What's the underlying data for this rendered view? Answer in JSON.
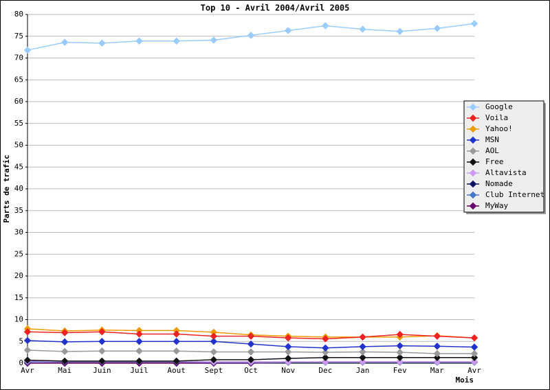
{
  "chart_data": {
    "type": "line",
    "title": "Top 10 - Avril 2004/Avril 2005",
    "x_label": "Mois",
    "y_label": "Parts de trafic",
    "categories": [
      "Avr",
      "Mai",
      "Juin",
      "Juil",
      "Aout",
      "Sept",
      "Oct",
      "Nov",
      "Dec",
      "Jan",
      "Fev",
      "Mar",
      "Avr"
    ],
    "series": [
      {
        "name": "Google",
        "color": "#99ccff",
        "values": [
          71.8,
          73.6,
          73.4,
          73.9,
          73.9,
          74.1,
          75.2,
          76.3,
          77.4,
          76.6,
          76.1,
          76.8,
          77.9
        ]
      },
      {
        "name": "Voila",
        "color": "#ee2222",
        "values": [
          7.2,
          7.0,
          7.2,
          6.7,
          6.7,
          6.2,
          6.2,
          5.8,
          5.6,
          6.0,
          6.6,
          6.2,
          5.8
        ]
      },
      {
        "name": "Yahoo!",
        "color": "#ee9900",
        "values": [
          7.9,
          7.4,
          7.6,
          7.5,
          7.5,
          7.1,
          6.5,
          6.2,
          6.0,
          6.0,
          6.0,
          6.3,
          5.8
        ]
      },
      {
        "name": "MSN",
        "color": "#2233cc",
        "values": [
          5.2,
          4.9,
          5.0,
          5.0,
          5.0,
          5.0,
          4.4,
          3.8,
          3.5,
          3.8,
          4.0,
          3.9,
          3.7
        ]
      },
      {
        "name": "AOL",
        "color": "#999999",
        "values": [
          3.0,
          2.7,
          2.8,
          2.8,
          2.8,
          2.6,
          2.6,
          2.6,
          2.5,
          2.6,
          2.5,
          2.2,
          2.2
        ]
      },
      {
        "name": "Free",
        "color": "#111111",
        "values": [
          0.7,
          0.5,
          0.5,
          0.5,
          0.5,
          0.8,
          0.8,
          1.1,
          1.3,
          1.3,
          1.3,
          1.3,
          1.3
        ]
      },
      {
        "name": "Altavista",
        "color": "#cc99ee",
        "values": [
          0.5,
          0.4,
          0.4,
          0.4,
          0.4,
          0.3,
          0.3,
          0.3,
          0.3,
          0.3,
          0.3,
          0.3,
          0.3
        ]
      },
      {
        "name": "Nomade",
        "color": "#111166",
        "values": [
          0.5,
          0.3,
          0.3,
          0.3,
          0.3,
          0.3,
          0.3,
          0.3,
          0.3,
          0.3,
          0.3,
          0.3,
          0.3
        ]
      },
      {
        "name": "Club Internet",
        "color": "#4477cc",
        "values": [
          0.3,
          0.3,
          0.3,
          0.3,
          0.3,
          0.2,
          0.2,
          0.2,
          0.2,
          0.2,
          0.2,
          0.2,
          0.2
        ]
      },
      {
        "name": "MyWay",
        "color": "#660066",
        "values": [
          0,
          0,
          0,
          0,
          0,
          0,
          0,
          0.2,
          0.3,
          0.3,
          0.3,
          0.3,
          0.3
        ]
      }
    ],
    "ylim": [
      0,
      80
    ],
    "yticks": [
      0,
      5,
      10,
      15,
      20,
      25,
      30,
      35,
      40,
      45,
      50,
      55,
      60,
      65,
      70,
      75,
      80
    ],
    "grid": true,
    "legend": "right"
  }
}
